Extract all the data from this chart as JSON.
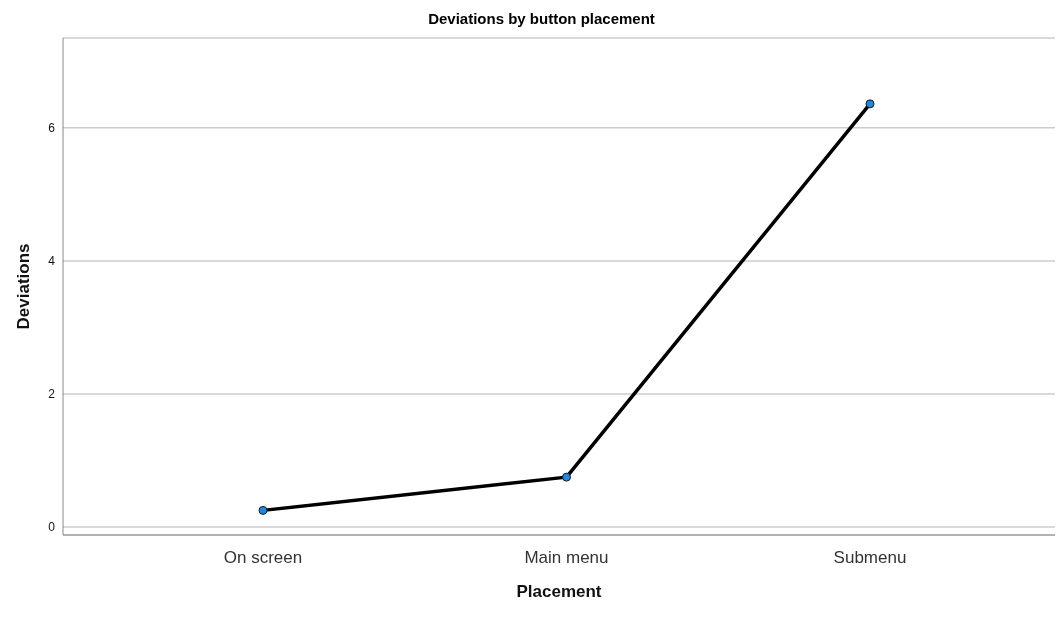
{
  "chart_data": {
    "type": "line",
    "title": "Deviations by button placement",
    "xlabel": "Placement",
    "ylabel": "Deviations",
    "categories": [
      "On screen",
      "Main menu",
      "Submenu"
    ],
    "series": [
      {
        "color": "#000000",
        "values": [
          0.25,
          0.75,
          6.36
        ]
      }
    ],
    "ylim": [
      -0.12,
      7.35
    ],
    "yticks": [
      0,
      2,
      4,
      6
    ],
    "grid": "y",
    "marker": "circle",
    "line_style": "solid",
    "legend": false
  }
}
